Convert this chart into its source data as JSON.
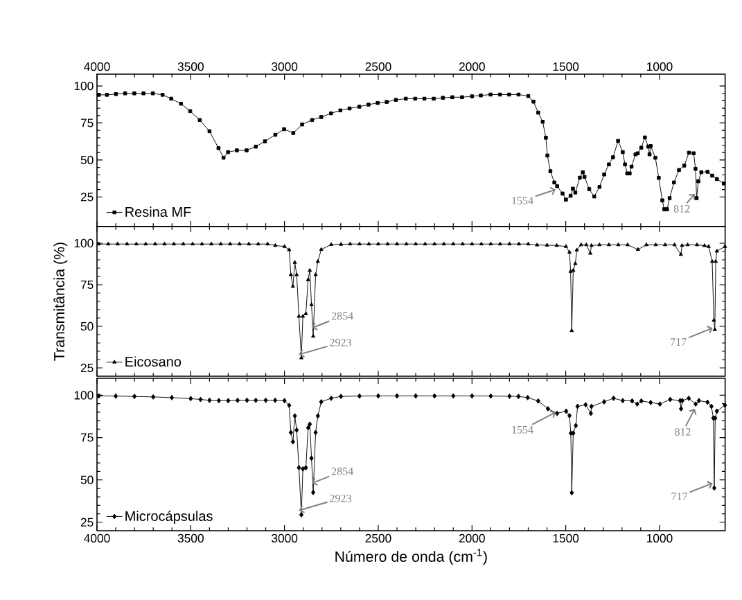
{
  "chart_data": [
    {
      "type": "line",
      "xlim": [
        4000,
        650
      ],
      "x2lim": [
        4000,
        650
      ],
      "x2ticks": [
        4000,
        3500,
        3000,
        2500,
        2000,
        1500,
        1000
      ],
      "xticks": [
        4000,
        3500,
        3000,
        2500,
        2000,
        1500,
        1000
      ],
      "ylim": [
        5,
        108
      ],
      "yticks": [
        25,
        50,
        75,
        100
      ],
      "tick_labels": "y",
      "legend": "bottom left",
      "marker": "square",
      "series": [
        {
          "name": "Resina MF",
          "color": "#000000",
          "x": [
            3990,
            3947,
            3899,
            3850,
            3801,
            3752,
            3702,
            3650,
            3604,
            3552,
            3503,
            3452,
            3400,
            3352,
            3325,
            3301,
            3254,
            3202,
            3153,
            3104,
            3049,
            3002,
            2953,
            2906,
            2853,
            2804,
            2752,
            2702,
            2653,
            2601,
            2552,
            2503,
            2455,
            2406,
            2353,
            2303,
            2254,
            2204,
            2155,
            2105,
            2053,
            2000,
            1953,
            1901,
            1851,
            1802,
            1752,
            1700,
            1672,
            1647,
            1623,
            1606,
            1598,
            1582,
            1561,
            1546,
            1517,
            1499,
            1474,
            1462,
            1449,
            1425,
            1409,
            1400,
            1375,
            1348,
            1320,
            1295,
            1270,
            1248,
            1221,
            1196,
            1184,
            1172,
            1159,
            1149,
            1128,
            1116,
            1097,
            1078,
            1060,
            1053,
            1047,
            1022,
            1004,
            985,
            975,
            960,
            946,
            923,
            896,
            868,
            843,
            818,
            808,
            802,
            793,
            777,
            744,
            719,
            694,
            657
          ],
          "values": [
            94,
            94,
            94.5,
            95,
            95,
            95,
            95,
            94,
            91.4,
            88,
            83,
            77,
            69.4,
            58,
            51.5,
            55.3,
            56.5,
            56.5,
            59,
            62.6,
            67,
            70.8,
            68.2,
            74,
            77,
            79,
            81.5,
            83.5,
            84.8,
            86,
            87.4,
            88.5,
            89.2,
            90.6,
            91.4,
            91.4,
            91.4,
            91.4,
            92,
            92.4,
            92.4,
            93,
            93.6,
            94.2,
            94.2,
            94.2,
            94.2,
            93.2,
            89.4,
            82,
            75.8,
            65,
            53,
            42.4,
            34.8,
            32.3,
            27.3,
            23.2,
            25.8,
            30.6,
            28,
            38,
            41.7,
            38.6,
            30.3,
            25.3,
            31.8,
            40.2,
            47,
            51.8,
            62.9,
            55.3,
            47,
            40.9,
            40.9,
            45.5,
            53.8,
            54.5,
            58.3,
            65.2,
            59,
            53.8,
            59.4,
            51.5,
            37.9,
            22.7,
            16.7,
            16.7,
            24.2,
            34.8,
            43.2,
            46.2,
            54.9,
            54.5,
            44,
            24.2,
            35.6,
            41.7,
            42,
            39.4,
            37.1,
            34.1
          ]
        }
      ],
      "annotations": [
        {
          "text": "1554",
          "x": 1554,
          "y": 30
        },
        {
          "text": "812",
          "x": 812,
          "y": 27
        }
      ]
    },
    {
      "type": "line",
      "xlim": [
        4000,
        650
      ],
      "xticks": [
        4000,
        3500,
        3000,
        2500,
        2000,
        1500,
        1000
      ],
      "ylim": [
        20,
        110
      ],
      "yticks": [
        25,
        50,
        75,
        100
      ],
      "tick_labels": "y",
      "legend": "bottom left",
      "marker": "triangle",
      "ylabel": "Transmitância (%)",
      "series": [
        {
          "name": "Eicosano",
          "color": "#000000",
          "x": [
            3990,
            3940,
            3890,
            3840,
            3790,
            3740,
            3690,
            3640,
            3590,
            3540,
            3490,
            3440,
            3390,
            3340,
            3290,
            3240,
            3190,
            3140,
            3090,
            3049,
            3000,
            2975,
            2966,
            2955,
            2945,
            2935,
            2923,
            2910,
            2902,
            2886,
            2874,
            2865,
            2856,
            2847,
            2834,
            2822,
            2804,
            2751,
            2699,
            2650,
            2600,
            2550,
            2500,
            2450,
            2400,
            2350,
            2300,
            2250,
            2200,
            2150,
            2100,
            2050,
            2000,
            1950,
            1900,
            1850,
            1800,
            1750,
            1700,
            1653,
            1600,
            1548,
            1499,
            1480,
            1474,
            1468,
            1460,
            1449,
            1441,
            1418,
            1390,
            1369,
            1363,
            1320,
            1270,
            1220,
            1170,
            1115,
            1070,
            1020,
            970,
            920,
            886,
            880,
            850,
            800,
            760,
            738,
            719,
            710,
            705,
            700,
            694,
            651
          ],
          "values": [
            99.5,
            99.5,
            99.5,
            99.5,
            99.5,
            99.5,
            99.5,
            99.5,
            99.5,
            99.5,
            99.5,
            99.5,
            99.5,
            99.5,
            99.5,
            99.5,
            99.5,
            99.5,
            99.5,
            98.6,
            98,
            96,
            81,
            74,
            88.4,
            81,
            56,
            31,
            56,
            57.6,
            78,
            83.6,
            63,
            44,
            81,
            89,
            96.2,
            99.2,
            99.3,
            99.5,
            99.5,
            99.5,
            99.5,
            99.5,
            99.5,
            99.5,
            99.5,
            99.5,
            99.5,
            99.5,
            99.5,
            99.5,
            99.5,
            99.5,
            99.5,
            99.5,
            99.5,
            99.5,
            99.5,
            98.9,
            98.8,
            98.6,
            98,
            94.5,
            83,
            47.4,
            83.6,
            87.7,
            95.9,
            99,
            99,
            93.9,
            98.6,
            99,
            99,
            99,
            99,
            96.2,
            99,
            99,
            99,
            99,
            93.2,
            98.6,
            99,
            99,
            98.5,
            98,
            89,
            53.6,
            48,
            89,
            95.2,
            98
          ]
        }
      ],
      "annotations": [
        {
          "text": "2854",
          "x": 2854,
          "y": 49
        },
        {
          "text": "2923",
          "x": 2923,
          "y": 33
        },
        {
          "text": "717",
          "x": 717,
          "y": 49
        }
      ]
    },
    {
      "type": "line",
      "xlim": [
        4000,
        650
      ],
      "xticks": [
        4000,
        3500,
        3000,
        2500,
        2000,
        1500,
        1000
      ],
      "ylim": [
        20,
        110
      ],
      "yticks": [
        25,
        50,
        75,
        100
      ],
      "legend": "bottom left",
      "marker": "diamond",
      "xlabel": "Número de onda (cm$^{-1}$)",
      "series": [
        {
          "name": "Microcápsulas",
          "color": "#000000",
          "x": [
            3990,
            3900,
            3800,
            3700,
            3601,
            3500,
            3448,
            3400,
            3350,
            3300,
            3250,
            3200,
            3153,
            3100,
            3050,
            3000,
            2975,
            2966,
            2955,
            2945,
            2935,
            2923,
            2910,
            2902,
            2886,
            2874,
            2865,
            2856,
            2847,
            2834,
            2822,
            2804,
            2751,
            2699,
            2600,
            2500,
            2400,
            2300,
            2200,
            2100,
            2000,
            1900,
            1800,
            1752,
            1703,
            1647,
            1595,
            1546,
            1498,
            1480,
            1473,
            1468,
            1460,
            1446,
            1437,
            1394,
            1366,
            1363,
            1295,
            1245,
            1196,
            1146,
            1119,
            1097,
            1047,
            998,
            943,
            890,
            885,
            878,
            844,
            807,
            790,
            744,
            723,
            713,
            708,
            703,
            694,
            651
          ],
          "values": [
            99.6,
            99.5,
            99.3,
            99,
            98.6,
            98,
            97.5,
            97,
            96.8,
            96.8,
            97,
            97,
            97,
            97,
            97,
            96.8,
            94,
            78,
            72.5,
            87.8,
            79.4,
            57.2,
            29.4,
            56.5,
            57.2,
            80.8,
            82.9,
            62.8,
            42.6,
            78,
            87.8,
            96.1,
            98.2,
            99.3,
            99.5,
            99.6,
            99.6,
            99.6,
            99.6,
            99.6,
            99.6,
            99.5,
            99.4,
            99.3,
            98.6,
            96.6,
            92,
            89.3,
            90.6,
            87.9,
            77.6,
            42.4,
            77.6,
            82.1,
            93.4,
            94.4,
            89.3,
            93.4,
            96.1,
            98.2,
            96.8,
            96.6,
            94.8,
            96.6,
            95.7,
            94.8,
            97.5,
            96.8,
            92,
            96.8,
            98.2,
            94.8,
            96.8,
            95.9,
            93.4,
            86.5,
            45.2,
            86.5,
            90.6,
            94.1
          ]
        }
      ],
      "annotations": [
        {
          "text": "2854",
          "x": 2854,
          "y": 48
        },
        {
          "text": "2923",
          "x": 2923,
          "y": 32
        },
        {
          "text": "1554",
          "x": 1554,
          "y": 90
        },
        {
          "text": "812",
          "x": 812,
          "y": 92
        },
        {
          "text": "717",
          "x": 717,
          "y": 48
        }
      ]
    }
  ]
}
